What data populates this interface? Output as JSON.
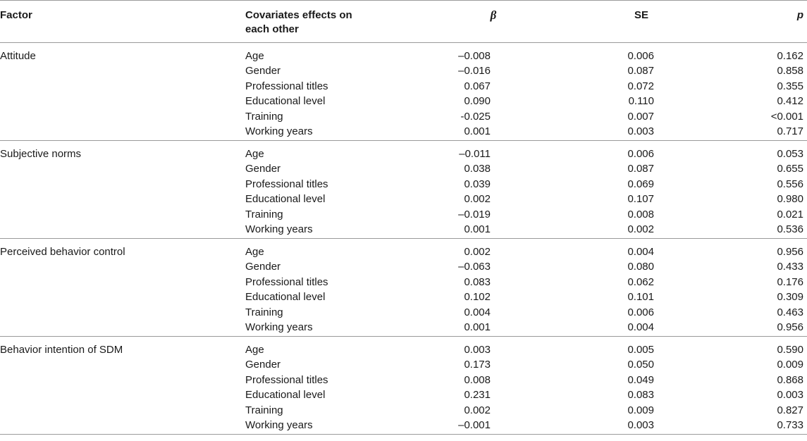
{
  "header": {
    "factor": "Factor",
    "covariate_line1": "Covariates effects on",
    "covariate_line2": "each other",
    "beta": "β",
    "se": "SE",
    "p": "p"
  },
  "groups": [
    {
      "factor": "Attitude",
      "rows": [
        {
          "covariate": "Age",
          "beta": "–0.008",
          "se": "0.006",
          "p": "0.162"
        },
        {
          "covariate": "Gender",
          "beta": "–0.016",
          "se": "0.087",
          "p": "0.858"
        },
        {
          "covariate": "Professional titles",
          "beta": "0.067",
          "se": "0.072",
          "p": "0.355"
        },
        {
          "covariate": "Educational level",
          "beta": "0.090",
          "se": "0.110",
          "p": "0.412"
        },
        {
          "covariate": "Training",
          "beta": "-0.025",
          "se": "0.007",
          "p": "<0.001"
        },
        {
          "covariate": "Working years",
          "beta": "0.001",
          "se": "0.003",
          "p": "0.717"
        }
      ]
    },
    {
      "factor": "Subjective norms",
      "rows": [
        {
          "covariate": "Age",
          "beta": "–0.011",
          "se": "0.006",
          "p": "0.053"
        },
        {
          "covariate": "Gender",
          "beta": "0.038",
          "se": "0.087",
          "p": "0.655"
        },
        {
          "covariate": "Professional titles",
          "beta": "0.039",
          "se": "0.069",
          "p": "0.556"
        },
        {
          "covariate": "Educational level",
          "beta": "0.002",
          "se": "0.107",
          "p": "0.980"
        },
        {
          "covariate": "Training",
          "beta": "–0.019",
          "se": "0.008",
          "p": "0.021"
        },
        {
          "covariate": "Working years",
          "beta": "0.001",
          "se": "0.002",
          "p": "0.536"
        }
      ]
    },
    {
      "factor": "Perceived behavior control",
      "rows": [
        {
          "covariate": "Age",
          "beta": "0.002",
          "se": "0.004",
          "p": "0.956"
        },
        {
          "covariate": "Gender",
          "beta": "–0.063",
          "se": "0.080",
          "p": "0.433"
        },
        {
          "covariate": "Professional titles",
          "beta": "0.083",
          "se": "0.062",
          "p": "0.176"
        },
        {
          "covariate": "Educational level",
          "beta": "0.102",
          "se": "0.101",
          "p": "0.309"
        },
        {
          "covariate": "Training",
          "beta": "0.004",
          "se": "0.006",
          "p": "0.463"
        },
        {
          "covariate": "Working years",
          "beta": "0.001",
          "se": "0.004",
          "p": "0.956"
        }
      ]
    },
    {
      "factor": "Behavior intention of SDM",
      "rows": [
        {
          "covariate": "Age",
          "beta": "0.003",
          "se": "0.005",
          "p": "0.590"
        },
        {
          "covariate": "Gender",
          "beta": "0.173",
          "se": "0.050",
          "p": "0.009"
        },
        {
          "covariate": "Professional titles",
          "beta": "0.008",
          "se": "0.049",
          "p": "0.868"
        },
        {
          "covariate": "Educational level",
          "beta": "0.231",
          "se": "0.083",
          "p": "0.003"
        },
        {
          "covariate": "Training",
          "beta": "0.002",
          "se": "0.009",
          "p": "0.827"
        },
        {
          "covariate": "Working years",
          "beta": "–0.001",
          "se": "0.003",
          "p": "0.733"
        }
      ]
    }
  ]
}
